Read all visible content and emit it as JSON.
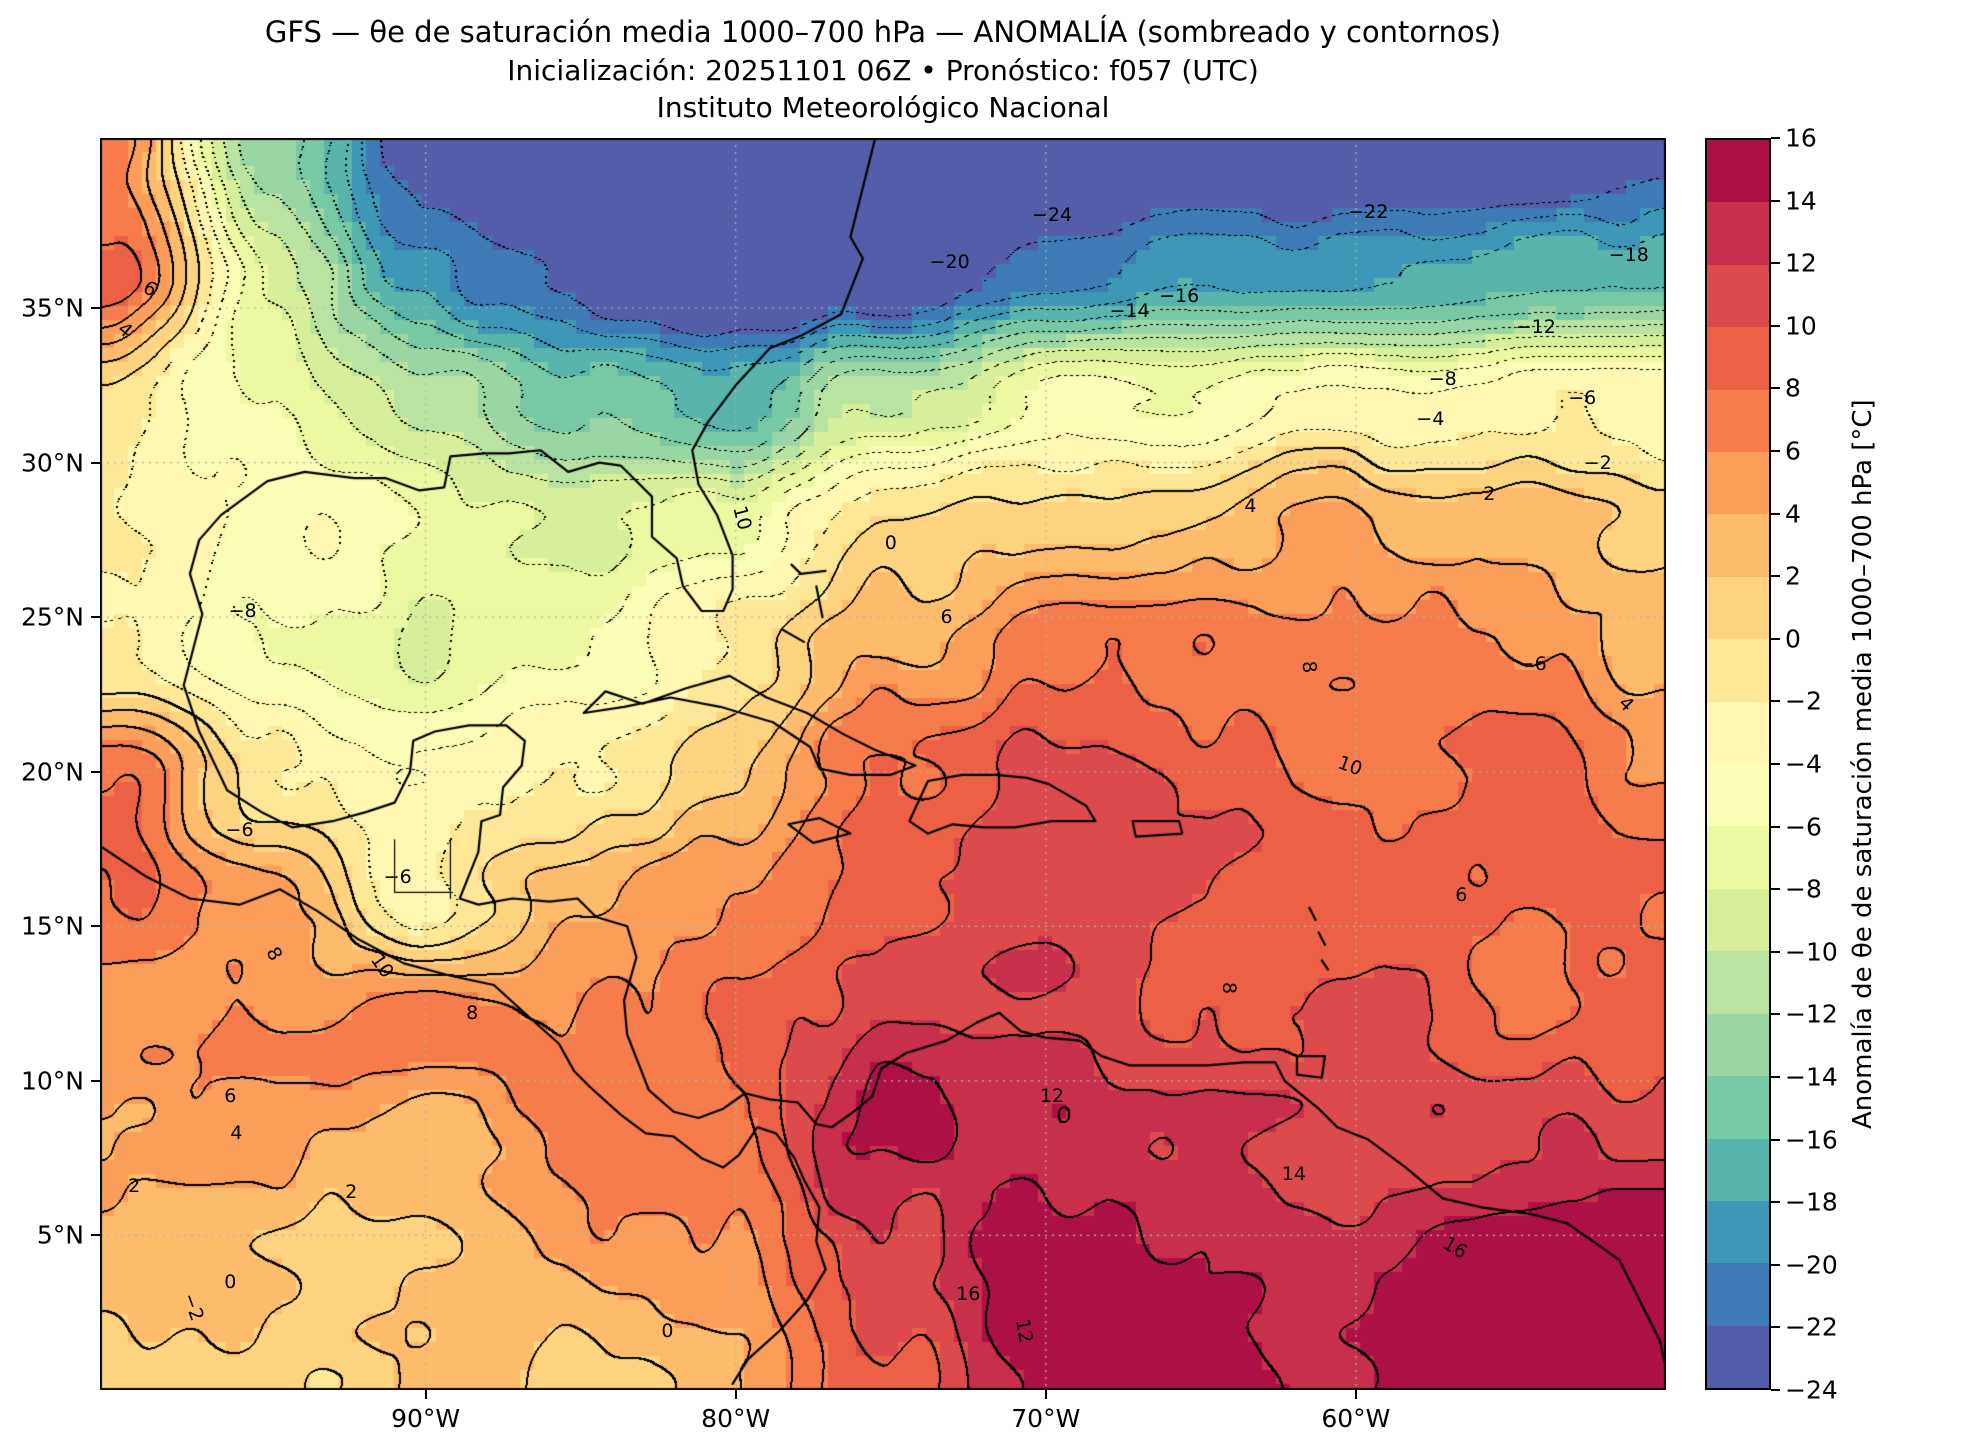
{
  "title": {
    "line1": "GFS — θe de saturación media 1000–700 hPa — ANOMALÍA (sombreado y contornos)",
    "line2": "Inicialización: 20251101 06Z   •   Pronóstico: f057 (UTC)",
    "line3": "Instituto Meteorológico Nacional"
  },
  "map_extent": {
    "lon_min": -100.5,
    "lon_max": -50.0,
    "lat_min": 0.0,
    "lat_max": 40.5
  },
  "axes": {
    "lat_ticks": [
      {
        "label": "35°N",
        "value": 35
      },
      {
        "label": "30°N",
        "value": 30
      },
      {
        "label": "25°N",
        "value": 25
      },
      {
        "label": "20°N",
        "value": 20
      },
      {
        "label": "15°N",
        "value": 15
      },
      {
        "label": "10°N",
        "value": 10
      },
      {
        "label": "5°N",
        "value": 5
      }
    ],
    "lon_ticks": [
      {
        "label": "90°W",
        "value": -90
      },
      {
        "label": "80°W",
        "value": -80
      },
      {
        "label": "70°W",
        "value": -70
      },
      {
        "label": "60°W",
        "value": -60
      }
    ]
  },
  "colorbar": {
    "label": "Anomalía de θe de saturación media 1000–700 hPa [°C]",
    "tick_labels": [
      "16",
      "14",
      "12",
      "10",
      "8",
      "6",
      "4",
      "2",
      "0",
      "−2",
      "−4",
      "−6",
      "−8",
      "−10",
      "−12",
      "−14",
      "−16",
      "−18",
      "−20",
      "−22",
      "−24"
    ],
    "anchor_colors": [
      "#5e4fa2",
      "#3288bd",
      "#66c2a5",
      "#abdda4",
      "#e6f598",
      "#ffffbf",
      "#fee08b",
      "#fdae61",
      "#f46d43",
      "#d53e4f",
      "#9e0142"
    ]
  },
  "chart_data": {
    "type": "heatmap",
    "subtype": "filled-contour-anomaly-map",
    "title": "GFS — θe de saturación media 1000–700 hPa — ANOMALÍA (sombreado y contornos)",
    "units": "°C",
    "colormap": "Spectral_r",
    "level_min": -24,
    "level_max": 16,
    "level_step": 2,
    "lats": [
      40,
      36,
      32,
      28,
      24,
      20,
      16,
      12,
      8,
      4,
      0
    ],
    "lons": [
      -100,
      -95,
      -90,
      -85,
      -80,
      -75,
      -70,
      -65,
      -60,
      -55,
      -50
    ],
    "values": [
      [
        6,
        -14,
        -24,
        -26,
        -27,
        -27,
        -27,
        -26,
        -26,
        -25,
        -24
      ],
      [
        8,
        -8,
        -18,
        -24,
        -26,
        -24,
        -20,
        -18,
        -17,
        -17,
        -16
      ],
      [
        -2,
        -6,
        -10,
        -14,
        -18,
        -10,
        -6,
        -5,
        -4,
        -3,
        -2
      ],
      [
        -2,
        -4,
        -6,
        -8,
        -6,
        0,
        2,
        3,
        4,
        3,
        2
      ],
      [
        -2,
        -6,
        -8,
        -6,
        -2,
        4,
        6,
        8,
        6,
        6,
        4
      ],
      [
        8,
        -2,
        -4,
        -2,
        2,
        8,
        10,
        10,
        8,
        8,
        6
      ],
      [
        8,
        6,
        -4,
        4,
        6,
        10,
        12,
        10,
        8,
        8,
        8
      ],
      [
        6,
        6,
        8,
        6,
        8,
        12,
        12,
        10,
        10,
        8,
        10
      ],
      [
        4,
        4,
        4,
        6,
        8,
        14,
        14,
        12,
        10,
        12,
        12
      ],
      [
        2,
        2,
        2,
        4,
        6,
        12,
        16,
        14,
        14,
        16,
        16
      ],
      [
        0,
        0,
        2,
        2,
        4,
        10,
        14,
        16,
        14,
        16,
        16
      ]
    ]
  },
  "contour_labels": [
    {
      "t": "−24",
      "lon": -69.8,
      "lat": 38.0
    },
    {
      "t": "−22",
      "lon": -59.6,
      "lat": 38.1
    },
    {
      "t": "−20",
      "lon": -73.1,
      "lat": 36.5
    },
    {
      "t": "−18",
      "lon": -51.2,
      "lat": 36.7
    },
    {
      "t": "−16",
      "lon": -65.7,
      "lat": 35.4
    },
    {
      "t": "−14",
      "lon": -67.3,
      "lat": 34.9
    },
    {
      "t": "−12",
      "lon": -54.2,
      "lat": 34.4
    },
    {
      "t": "−8",
      "lon": -57.2,
      "lat": 32.7
    },
    {
      "t": "−6",
      "lon": -52.7,
      "lat": 32.1
    },
    {
      "t": "−4",
      "lon": -57.6,
      "lat": 31.4
    },
    {
      "t": "−2",
      "lon": -52.2,
      "lat": 30.0
    },
    {
      "t": "2",
      "lon": -55.7,
      "lat": 29.0
    },
    {
      "t": "4",
      "lon": -63.4,
      "lat": 28.6
    },
    {
      "t": "0",
      "lon": -75.0,
      "lat": 27.4
    },
    {
      "t": "10",
      "lon": -79.8,
      "lat": 28.2,
      "r": 75
    },
    {
      "t": "−8",
      "lon": -95.9,
      "lat": 25.2
    },
    {
      "t": "6",
      "lon": -73.2,
      "lat": 25.0
    },
    {
      "t": "8",
      "lon": -61.5,
      "lat": 23.4,
      "r": 85
    },
    {
      "t": "−6",
      "lon": -54.3,
      "lat": 23.5
    },
    {
      "t": "4",
      "lon": -51.3,
      "lat": 22.2,
      "r": 45
    },
    {
      "t": "10",
      "lon": -60.2,
      "lat": 20.2,
      "r": 20
    },
    {
      "t": "6",
      "lon": -98.9,
      "lat": 35.6,
      "r": 30
    },
    {
      "t": "4",
      "lon": -99.7,
      "lat": 34.3,
      "r": 40
    },
    {
      "t": "−6",
      "lon": -96.0,
      "lat": 18.1
    },
    {
      "t": "−6",
      "lon": -90.9,
      "lat": 16.6
    },
    {
      "t": "8",
      "lon": -94.9,
      "lat": 14.1,
      "r": 60
    },
    {
      "t": "10",
      "lon": -91.4,
      "lat": 13.7,
      "r": 55
    },
    {
      "t": "8",
      "lon": -88.5,
      "lat": 12.2
    },
    {
      "t": "12",
      "lon": -69.8,
      "lat": 9.5
    },
    {
      "t": "8",
      "lon": -64.1,
      "lat": 13.0,
      "r": 90
    },
    {
      "t": "6",
      "lon": -56.6,
      "lat": 16.0
    },
    {
      "t": "6",
      "lon": -96.3,
      "lat": 9.5
    },
    {
      "t": "4",
      "lon": -96.1,
      "lat": 8.3
    },
    {
      "t": "2",
      "lon": -99.4,
      "lat": 6.6
    },
    {
      "t": "2",
      "lon": -92.4,
      "lat": 6.4
    },
    {
      "t": "0",
      "lon": -96.3,
      "lat": 3.5
    },
    {
      "t": "0",
      "lon": -82.2,
      "lat": 1.9
    },
    {
      "t": "−2",
      "lon": -97.5,
      "lat": 2.7,
      "r": 70
    },
    {
      "t": "16",
      "lon": -72.5,
      "lat": 3.1
    },
    {
      "t": "16",
      "lon": -56.8,
      "lat": 4.6,
      "r": 30
    },
    {
      "t": "12",
      "lon": -70.7,
      "lat": 1.9,
      "r": 80
    },
    {
      "t": "14",
      "lon": -62.0,
      "lat": 7.0
    }
  ],
  "geo": {
    "coastlines": [
      [
        [
          -75.5,
          40.5
        ],
        [
          -75.9,
          38.9
        ],
        [
          -76.3,
          37.3
        ],
        [
          -75.9,
          36.6
        ],
        [
          -76.6,
          34.8
        ],
        [
          -77.9,
          34.1
        ],
        [
          -78.9,
          33.7
        ],
        [
          -80.0,
          32.5
        ],
        [
          -80.9,
          31.3
        ],
        [
          -81.4,
          30.4
        ],
        [
          -81.2,
          29.3
        ],
        [
          -80.6,
          28.3
        ],
        [
          -80.1,
          27.0
        ],
        [
          -80.1,
          25.9
        ],
        [
          -80.4,
          25.2
        ],
        [
          -81.1,
          25.2
        ],
        [
          -81.7,
          26.0
        ],
        [
          -81.9,
          26.9
        ],
        [
          -82.7,
          27.6
        ],
        [
          -82.7,
          28.9
        ],
        [
          -83.7,
          29.9
        ],
        [
          -84.4,
          30.0
        ],
        [
          -85.4,
          29.7
        ],
        [
          -86.3,
          30.4
        ],
        [
          -87.3,
          30.3
        ],
        [
          -88.1,
          30.3
        ],
        [
          -89.2,
          30.2
        ],
        [
          -89.4,
          29.2
        ],
        [
          -90.2,
          29.1
        ],
        [
          -91.3,
          29.5
        ],
        [
          -92.3,
          29.5
        ],
        [
          -93.9,
          29.7
        ],
        [
          -95.1,
          29.4
        ],
        [
          -96.6,
          28.3
        ],
        [
          -97.3,
          27.5
        ],
        [
          -97.6,
          26.4
        ],
        [
          -97.2,
          25.1
        ],
        [
          -97.8,
          22.8
        ],
        [
          -97.3,
          21.3
        ],
        [
          -96.4,
          19.4
        ],
        [
          -95.3,
          18.7
        ],
        [
          -94.3,
          18.2
        ],
        [
          -93.0,
          18.4
        ],
        [
          -91.9,
          18.7
        ],
        [
          -91.0,
          19.0
        ],
        [
          -90.5,
          20.0
        ],
        [
          -90.4,
          21.0
        ],
        [
          -89.7,
          21.3
        ],
        [
          -88.6,
          21.5
        ],
        [
          -87.4,
          21.5
        ],
        [
          -86.8,
          21.0
        ],
        [
          -86.9,
          20.2
        ],
        [
          -87.5,
          19.5
        ],
        [
          -87.6,
          18.6
        ],
        [
          -88.2,
          18.4
        ],
        [
          -88.3,
          17.4
        ],
        [
          -88.9,
          15.9
        ],
        [
          -88.3,
          15.7
        ],
        [
          -87.2,
          15.9
        ],
        [
          -86.0,
          15.8
        ],
        [
          -85.1,
          15.9
        ],
        [
          -84.5,
          15.3
        ],
        [
          -83.5,
          15.0
        ],
        [
          -83.2,
          14.0
        ],
        [
          -83.6,
          12.6
        ],
        [
          -83.5,
          11.5
        ],
        [
          -82.8,
          9.7
        ],
        [
          -82.0,
          9.0
        ],
        [
          -81.2,
          8.8
        ],
        [
          -80.4,
          9.1
        ],
        [
          -79.7,
          9.6
        ],
        [
          -78.9,
          9.4
        ],
        [
          -78.0,
          9.3
        ],
        [
          -77.4,
          8.6
        ],
        [
          -76.9,
          8.5
        ],
        [
          -76.2,
          9.0
        ],
        [
          -75.6,
          9.5
        ],
        [
          -75.3,
          10.4
        ],
        [
          -74.5,
          10.9
        ],
        [
          -73.2,
          11.3
        ],
        [
          -72.2,
          11.9
        ],
        [
          -71.5,
          12.2
        ],
        [
          -70.8,
          11.6
        ],
        [
          -70.0,
          11.4
        ],
        [
          -68.9,
          11.3
        ],
        [
          -68.2,
          10.8
        ],
        [
          -67.3,
          10.5
        ],
        [
          -66.1,
          10.5
        ],
        [
          -64.8,
          10.5
        ],
        [
          -63.6,
          10.6
        ],
        [
          -62.6,
          10.6
        ],
        [
          -62.3,
          10.0
        ],
        [
          -61.2,
          9.1
        ],
        [
          -60.6,
          8.5
        ],
        [
          -59.6,
          8.1
        ],
        [
          -58.4,
          7.2
        ],
        [
          -57.2,
          6.2
        ],
        [
          -55.9,
          5.9
        ],
        [
          -54.4,
          5.7
        ],
        [
          -53.2,
          5.4
        ],
        [
          -52.2,
          4.7
        ],
        [
          -51.5,
          4.2
        ],
        [
          -50.9,
          3.0
        ],
        [
          -50.2,
          1.6
        ],
        [
          -50.0,
          0.7
        ]
      ],
      [
        [
          -100.5,
          17.6
        ],
        [
          -99.0,
          16.6
        ],
        [
          -97.6,
          15.9
        ],
        [
          -96.0,
          15.7
        ],
        [
          -94.7,
          16.2
        ],
        [
          -93.5,
          15.5
        ],
        [
          -92.2,
          14.6
        ],
        [
          -90.7,
          13.8
        ],
        [
          -89.2,
          13.4
        ],
        [
          -87.8,
          13.1
        ],
        [
          -86.7,
          12.1
        ],
        [
          -85.7,
          11.2
        ],
        [
          -85.2,
          10.3
        ],
        [
          -84.7,
          9.8
        ],
        [
          -83.7,
          8.9
        ],
        [
          -82.9,
          8.3
        ],
        [
          -82.0,
          8.2
        ],
        [
          -81.1,
          7.5
        ],
        [
          -80.4,
          7.2
        ],
        [
          -79.9,
          7.6
        ],
        [
          -79.3,
          8.5
        ],
        [
          -78.7,
          8.3
        ],
        [
          -78.1,
          7.5
        ],
        [
          -77.8,
          6.8
        ],
        [
          -77.3,
          5.9
        ],
        [
          -77.4,
          4.8
        ],
        [
          -77.1,
          3.9
        ],
        [
          -77.7,
          2.9
        ],
        [
          -78.6,
          1.9
        ],
        [
          -79.6,
          1.0
        ],
        [
          -80.1,
          0.2
        ]
      ],
      [
        [
          -84.9,
          21.9
        ],
        [
          -84.2,
          22.6
        ],
        [
          -83.0,
          22.2
        ],
        [
          -81.6,
          22.7
        ],
        [
          -80.2,
          23.1
        ],
        [
          -79.0,
          22.4
        ],
        [
          -77.7,
          21.9
        ],
        [
          -76.5,
          21.2
        ],
        [
          -75.5,
          20.7
        ],
        [
          -74.2,
          20.2
        ],
        [
          -75.0,
          19.9
        ],
        [
          -76.3,
          19.9
        ],
        [
          -77.3,
          20.1
        ],
        [
          -77.6,
          20.8
        ],
        [
          -78.8,
          21.6
        ],
        [
          -80.5,
          22.1
        ],
        [
          -82.1,
          22.4
        ],
        [
          -83.6,
          22.1
        ],
        [
          -84.9,
          21.9
        ]
      ],
      [
        [
          -74.4,
          18.4
        ],
        [
          -73.8,
          19.7
        ],
        [
          -72.7,
          19.9
        ],
        [
          -71.6,
          19.9
        ],
        [
          -70.6,
          19.8
        ],
        [
          -69.9,
          19.6
        ],
        [
          -68.7,
          18.9
        ],
        [
          -68.4,
          18.4
        ],
        [
          -69.8,
          18.4
        ],
        [
          -71.0,
          18.2
        ],
        [
          -72.0,
          18.2
        ],
        [
          -73.0,
          18.3
        ],
        [
          -73.8,
          18.0
        ],
        [
          -74.4,
          18.4
        ]
      ],
      [
        [
          -78.3,
          18.3
        ],
        [
          -77.3,
          18.5
        ],
        [
          -76.3,
          18.0
        ],
        [
          -77.5,
          17.7
        ],
        [
          -78.3,
          18.3
        ]
      ],
      [
        [
          -67.2,
          18.4
        ],
        [
          -65.7,
          18.4
        ],
        [
          -65.6,
          18.0
        ],
        [
          -67.1,
          17.9
        ],
        [
          -67.2,
          18.4
        ]
      ],
      [
        [
          -61.9,
          10.8
        ],
        [
          -61.0,
          10.8
        ],
        [
          -61.1,
          10.1
        ],
        [
          -61.9,
          10.2
        ],
        [
          -61.9,
          10.8
        ]
      ],
      [
        [
          -78.2,
          26.7
        ],
        [
          -77.9,
          26.4
        ],
        [
          -77.1,
          26.5
        ]
      ],
      [
        [
          -77.4,
          26.0
        ],
        [
          -77.2,
          25.0
        ]
      ],
      [
        [
          -78.5,
          24.6
        ],
        [
          -77.8,
          24.2
        ]
      ],
      [
        [
          -61.5,
          15.6
        ],
        [
          -61.3,
          15.2
        ]
      ],
      [
        [
          -61.2,
          14.8
        ],
        [
          -61.0,
          14.4
        ]
      ],
      [
        [
          -61.1,
          13.9
        ],
        [
          -60.9,
          13.6
        ]
      ]
    ],
    "borders": [
      [
        [
          -91.0,
          17.8
        ],
        [
          -91.0,
          16.1
        ],
        [
          -89.2,
          16.1
        ]
      ],
      [
        [
          -89.2,
          17.8
        ],
        [
          -89.2,
          15.9
        ]
      ]
    ]
  }
}
